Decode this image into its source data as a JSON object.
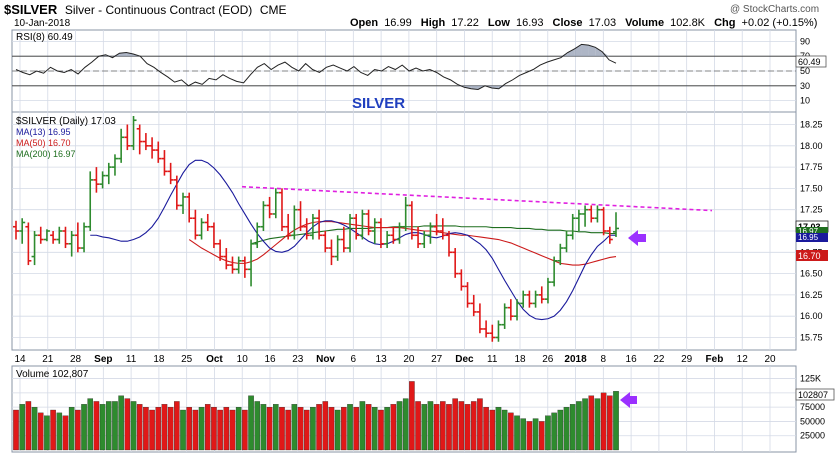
{
  "header": {
    "symbol": "$SILVER",
    "name": "Silver - Continuous Contract (EOD)",
    "exchange": "CME",
    "date": "10-Jan-2018",
    "brand": "@ StockCharts.com",
    "open_label": "Open",
    "open": "16.99",
    "high_label": "High",
    "high": "17.22",
    "low_label": "Low",
    "low": "16.93",
    "close_label": "Close",
    "close": "17.03",
    "volume_label": "Volume",
    "volume": "102.8K",
    "chg_label": "Chg",
    "chg": "+0.02 (+0.15%)"
  },
  "rsi_panel": {
    "legend": "RSI(8) 60.49",
    "value_tag": "60.49",
    "ticks": [
      "90",
      "70",
      "50",
      "30",
      "10"
    ],
    "title": "SILVER"
  },
  "price_panel": {
    "legend_main": "$SILVER (Daily) 17.03",
    "legend_ma13": "MA(13) 16.95",
    "legend_ma50": "MA(50) 16.70",
    "legend_ma200": "MA(200) 16.97",
    "tag_close": "17.03",
    "tag_ma200": "16.97",
    "tag_ma13": "16.95",
    "tag_ma50": "16.70",
    "ticks": [
      "18.25",
      "18.00",
      "17.75",
      "17.50",
      "17.25",
      "17.00",
      "16.75",
      "16.50",
      "16.25",
      "16.00",
      "15.75"
    ]
  },
  "volume_panel": {
    "legend": "Volume 102,807",
    "tag": "102807",
    "ticks": [
      "125K",
      "100000",
      "75000",
      "50000",
      "25000"
    ]
  },
  "x_axis": {
    "labels": [
      "14",
      "21",
      "28",
      "Sep",
      "11",
      "18",
      "25",
      "Oct",
      "10",
      "16",
      "23",
      "Nov",
      "6",
      "13",
      "20",
      "27",
      "Dec",
      "11",
      "18",
      "26",
      "2018",
      "8",
      "16",
      "22",
      "29",
      "Feb",
      "12",
      "20"
    ],
    "bold": [
      "Sep",
      "Oct",
      "Nov",
      "Dec",
      "2018",
      "Feb"
    ]
  },
  "colors": {
    "up": "#2e8b2e",
    "down": "#e01818",
    "ma13": "#1a1a9c",
    "ma50": "#cc1a1a",
    "ma200": "#1f6e1f",
    "trendline": "#e020e0",
    "arrow": "#9b30ff",
    "title": "#1f3fbf",
    "grid": "#d4dae6"
  },
  "chart_data": {
    "type": "candlestick-ohlc",
    "title": "SILVER",
    "price_range": [
      15.65,
      18.35
    ],
    "rsi_range": [
      0,
      100
    ],
    "volume_range": [
      0,
      140000
    ],
    "bars": [
      {
        "o": 17.05,
        "h": 17.12,
        "l": 16.9,
        "c": 17.0,
        "v": 70000
      },
      {
        "o": 17.0,
        "h": 17.15,
        "l": 16.85,
        "c": 17.1,
        "v": 80000
      },
      {
        "o": 17.05,
        "h": 17.1,
        "l": 16.6,
        "c": 16.65,
        "v": 85000
      },
      {
        "o": 16.7,
        "h": 17.0,
        "l": 16.6,
        "c": 16.95,
        "v": 75000
      },
      {
        "o": 16.95,
        "h": 17.05,
        "l": 16.85,
        "c": 16.9,
        "v": 65000
      },
      {
        "o": 16.9,
        "h": 17.02,
        "l": 16.88,
        "c": 17.0,
        "v": 60000
      },
      {
        "o": 16.95,
        "h": 17.0,
        "l": 16.85,
        "c": 16.9,
        "v": 70000
      },
      {
        "o": 16.9,
        "h": 17.05,
        "l": 16.85,
        "c": 17.0,
        "v": 65000
      },
      {
        "o": 17.0,
        "h": 17.05,
        "l": 16.8,
        "c": 16.85,
        "v": 60000
      },
      {
        "o": 16.85,
        "h": 17.0,
        "l": 16.7,
        "c": 16.95,
        "v": 75000
      },
      {
        "o": 16.95,
        "h": 17.1,
        "l": 16.75,
        "c": 16.8,
        "v": 70000
      },
      {
        "o": 16.8,
        "h": 17.1,
        "l": 16.75,
        "c": 17.05,
        "v": 80000
      },
      {
        "o": 17.05,
        "h": 17.7,
        "l": 17.0,
        "c": 17.6,
        "v": 90000
      },
      {
        "o": 17.6,
        "h": 17.75,
        "l": 17.45,
        "c": 17.55,
        "v": 85000
      },
      {
        "o": 17.55,
        "h": 17.7,
        "l": 17.5,
        "c": 17.65,
        "v": 80000
      },
      {
        "o": 17.65,
        "h": 17.8,
        "l": 17.55,
        "c": 17.75,
        "v": 85000
      },
      {
        "o": 17.75,
        "h": 17.9,
        "l": 17.65,
        "c": 17.85,
        "v": 85000
      },
      {
        "o": 17.85,
        "h": 18.2,
        "l": 17.8,
        "c": 18.1,
        "v": 95000
      },
      {
        "o": 18.1,
        "h": 18.25,
        "l": 17.95,
        "c": 18.0,
        "v": 90000
      },
      {
        "o": 18.0,
        "h": 18.35,
        "l": 17.95,
        "c": 18.3,
        "v": 85000
      },
      {
        "o": 18.2,
        "h": 18.25,
        "l": 17.9,
        "c": 18.05,
        "v": 80000
      },
      {
        "o": 18.05,
        "h": 18.15,
        "l": 17.95,
        "c": 18.0,
        "v": 75000
      },
      {
        "o": 18.0,
        "h": 18.1,
        "l": 17.85,
        "c": 17.95,
        "v": 70000
      },
      {
        "o": 17.95,
        "h": 18.05,
        "l": 17.8,
        "c": 17.85,
        "v": 75000
      },
      {
        "o": 17.85,
        "h": 17.95,
        "l": 17.65,
        "c": 17.7,
        "v": 80000
      },
      {
        "o": 17.7,
        "h": 17.8,
        "l": 17.55,
        "c": 17.6,
        "v": 75000
      },
      {
        "o": 17.6,
        "h": 17.65,
        "l": 17.25,
        "c": 17.3,
        "v": 85000
      },
      {
        "o": 17.3,
        "h": 17.45,
        "l": 17.2,
        "c": 17.4,
        "v": 70000
      },
      {
        "o": 17.4,
        "h": 17.45,
        "l": 17.1,
        "c": 17.15,
        "v": 75000
      },
      {
        "o": 17.15,
        "h": 17.25,
        "l": 16.9,
        "c": 16.95,
        "v": 70000
      },
      {
        "o": 16.95,
        "h": 17.15,
        "l": 16.9,
        "c": 17.1,
        "v": 75000
      },
      {
        "o": 17.1,
        "h": 17.2,
        "l": 17.0,
        "c": 17.05,
        "v": 80000
      },
      {
        "o": 17.05,
        "h": 17.1,
        "l": 16.8,
        "c": 16.85,
        "v": 75000
      },
      {
        "o": 16.85,
        "h": 16.9,
        "l": 16.65,
        "c": 16.7,
        "v": 70000
      },
      {
        "o": 16.7,
        "h": 16.8,
        "l": 16.55,
        "c": 16.6,
        "v": 75000
      },
      {
        "o": 16.6,
        "h": 16.7,
        "l": 16.5,
        "c": 16.55,
        "v": 70000
      },
      {
        "o": 16.55,
        "h": 16.7,
        "l": 16.5,
        "c": 16.65,
        "v": 75000
      },
      {
        "o": 16.65,
        "h": 16.7,
        "l": 16.45,
        "c": 16.55,
        "v": 70000
      },
      {
        "o": 16.55,
        "h": 16.9,
        "l": 16.35,
        "c": 16.85,
        "v": 95000
      },
      {
        "o": 16.85,
        "h": 17.1,
        "l": 16.8,
        "c": 17.05,
        "v": 85000
      },
      {
        "o": 17.05,
        "h": 17.35,
        "l": 17.0,
        "c": 17.3,
        "v": 80000
      },
      {
        "o": 17.3,
        "h": 17.4,
        "l": 17.15,
        "c": 17.2,
        "v": 75000
      },
      {
        "o": 17.2,
        "h": 17.5,
        "l": 17.15,
        "c": 17.45,
        "v": 80000
      },
      {
        "o": 17.45,
        "h": 17.5,
        "l": 17.0,
        "c": 17.05,
        "v": 75000
      },
      {
        "o": 17.05,
        "h": 17.2,
        "l": 16.9,
        "c": 16.95,
        "v": 70000
      },
      {
        "o": 16.95,
        "h": 17.3,
        "l": 16.9,
        "c": 17.25,
        "v": 80000
      },
      {
        "o": 17.25,
        "h": 17.35,
        "l": 17.0,
        "c": 17.05,
        "v": 75000
      },
      {
        "o": 17.05,
        "h": 17.15,
        "l": 16.9,
        "c": 16.95,
        "v": 70000
      },
      {
        "o": 16.95,
        "h": 17.2,
        "l": 16.9,
        "c": 17.15,
        "v": 75000
      },
      {
        "o": 17.15,
        "h": 17.25,
        "l": 16.9,
        "c": 16.95,
        "v": 80000
      },
      {
        "o": 16.95,
        "h": 17.0,
        "l": 16.75,
        "c": 16.8,
        "v": 85000
      },
      {
        "o": 16.8,
        "h": 16.9,
        "l": 16.6,
        "c": 16.7,
        "v": 75000
      },
      {
        "o": 16.7,
        "h": 16.95,
        "l": 16.65,
        "c": 16.9,
        "v": 70000
      },
      {
        "o": 16.9,
        "h": 17.05,
        "l": 16.75,
        "c": 16.8,
        "v": 75000
      },
      {
        "o": 16.8,
        "h": 17.2,
        "l": 16.75,
        "c": 17.15,
        "v": 80000
      },
      {
        "o": 17.15,
        "h": 17.2,
        "l": 16.9,
        "c": 16.95,
        "v": 75000
      },
      {
        "o": 16.95,
        "h": 17.25,
        "l": 16.9,
        "c": 17.2,
        "v": 85000
      },
      {
        "o": 17.2,
        "h": 17.25,
        "l": 16.95,
        "c": 17.0,
        "v": 80000
      },
      {
        "o": 17.0,
        "h": 17.15,
        "l": 16.85,
        "c": 17.1,
        "v": 75000
      },
      {
        "o": 17.1,
        "h": 17.15,
        "l": 16.8,
        "c": 16.85,
        "v": 70000
      },
      {
        "o": 16.85,
        "h": 17.0,
        "l": 16.8,
        "c": 16.95,
        "v": 75000
      },
      {
        "o": 16.95,
        "h": 17.05,
        "l": 16.85,
        "c": 16.9,
        "v": 80000
      },
      {
        "o": 16.9,
        "h": 17.1,
        "l": 16.85,
        "c": 17.05,
        "v": 85000
      },
      {
        "o": 17.05,
        "h": 17.4,
        "l": 17.0,
        "c": 17.3,
        "v": 90000
      },
      {
        "o": 17.3,
        "h": 17.35,
        "l": 16.9,
        "c": 16.95,
        "v": 120000
      },
      {
        "o": 16.95,
        "h": 17.05,
        "l": 16.8,
        "c": 16.85,
        "v": 85000
      },
      {
        "o": 16.85,
        "h": 17.0,
        "l": 16.8,
        "c": 16.95,
        "v": 80000
      },
      {
        "o": 16.95,
        "h": 17.1,
        "l": 16.85,
        "c": 17.05,
        "v": 85000
      },
      {
        "o": 17.05,
        "h": 17.2,
        "l": 16.95,
        "c": 17.0,
        "v": 80000
      },
      {
        "o": 17.0,
        "h": 17.15,
        "l": 16.9,
        "c": 16.95,
        "v": 85000
      },
      {
        "o": 16.95,
        "h": 17.0,
        "l": 16.7,
        "c": 16.75,
        "v": 80000
      },
      {
        "o": 16.75,
        "h": 16.8,
        "l": 16.45,
        "c": 16.5,
        "v": 90000
      },
      {
        "o": 16.5,
        "h": 16.55,
        "l": 16.3,
        "c": 16.35,
        "v": 85000
      },
      {
        "o": 16.35,
        "h": 16.4,
        "l": 16.1,
        "c": 16.15,
        "v": 80000
      },
      {
        "o": 16.15,
        "h": 16.25,
        "l": 16.0,
        "c": 16.05,
        "v": 85000
      },
      {
        "o": 16.05,
        "h": 16.15,
        "l": 15.8,
        "c": 15.85,
        "v": 90000
      },
      {
        "o": 15.85,
        "h": 15.95,
        "l": 15.75,
        "c": 15.8,
        "v": 75000
      },
      {
        "o": 15.8,
        "h": 15.9,
        "l": 15.7,
        "c": 15.75,
        "v": 70000
      },
      {
        "o": 15.75,
        "h": 15.95,
        "l": 15.7,
        "c": 15.9,
        "v": 75000
      },
      {
        "o": 15.9,
        "h": 16.15,
        "l": 15.85,
        "c": 16.1,
        "v": 70000
      },
      {
        "o": 16.1,
        "h": 16.2,
        "l": 15.95,
        "c": 16.0,
        "v": 65000
      },
      {
        "o": 16.0,
        "h": 16.2,
        "l": 15.95,
        "c": 16.15,
        "v": 60000
      },
      {
        "o": 16.15,
        "h": 16.3,
        "l": 16.1,
        "c": 16.25,
        "v": 55000
      },
      {
        "o": 16.25,
        "h": 16.3,
        "l": 16.1,
        "c": 16.15,
        "v": 50000
      },
      {
        "o": 16.15,
        "h": 16.3,
        "l": 16.1,
        "c": 16.25,
        "v": 55000
      },
      {
        "o": 16.25,
        "h": 16.35,
        "l": 16.15,
        "c": 16.2,
        "v": 50000
      },
      {
        "o": 16.2,
        "h": 16.45,
        "l": 16.15,
        "c": 16.4,
        "v": 60000
      },
      {
        "o": 16.4,
        "h": 16.7,
        "l": 16.35,
        "c": 16.65,
        "v": 65000
      },
      {
        "o": 16.65,
        "h": 16.85,
        "l": 16.6,
        "c": 16.8,
        "v": 70000
      },
      {
        "o": 16.8,
        "h": 17.0,
        "l": 16.75,
        "c": 16.95,
        "v": 75000
      },
      {
        "o": 16.95,
        "h": 17.2,
        "l": 16.9,
        "c": 17.15,
        "v": 80000
      },
      {
        "o": 17.15,
        "h": 17.25,
        "l": 17.0,
        "c": 17.2,
        "v": 85000
      },
      {
        "o": 17.2,
        "h": 17.3,
        "l": 17.05,
        "c": 17.25,
        "v": 90000
      },
      {
        "o": 17.25,
        "h": 17.3,
        "l": 17.1,
        "c": 17.15,
        "v": 95000
      },
      {
        "o": 17.15,
        "h": 17.3,
        "l": 17.1,
        "c": 17.25,
        "v": 90000
      },
      {
        "o": 17.25,
        "h": 17.28,
        "l": 16.95,
        "c": 17.0,
        "v": 100000
      },
      {
        "o": 17.0,
        "h": 17.05,
        "l": 16.85,
        "c": 16.9,
        "v": 95000
      },
      {
        "o": 16.99,
        "h": 17.22,
        "l": 16.93,
        "c": 17.03,
        "v": 102807
      }
    ],
    "ma13": [
      16.95,
      16.95,
      16.93,
      16.92,
      16.9,
      16.88,
      16.88,
      16.9,
      16.93,
      16.98,
      17.05,
      17.15,
      17.28,
      17.42,
      17.55,
      17.68,
      17.78,
      17.83,
      17.83,
      17.8,
      17.74,
      17.66,
      17.56,
      17.45,
      17.32,
      17.2,
      17.08,
      16.97,
      16.88,
      16.8,
      16.76,
      16.75,
      16.77,
      16.82,
      16.9,
      16.98,
      17.05,
      17.1,
      17.12,
      17.12,
      17.1,
      17.07,
      17.03,
      16.98,
      16.93,
      16.88,
      16.85,
      16.84,
      16.85,
      16.88,
      16.92,
      16.96,
      16.98,
      16.98,
      16.96,
      16.93,
      16.92,
      16.94,
      16.97,
      16.98,
      16.97,
      16.95,
      16.9,
      16.85,
      16.78,
      16.68,
      16.55,
      16.42,
      16.3,
      16.18,
      16.08,
      16.01,
      15.97,
      15.96,
      15.97,
      16.0,
      16.07,
      16.17,
      16.3,
      16.45,
      16.6,
      16.72,
      16.82,
      16.88,
      16.95,
      16.95
    ],
    "ma50": [
      16.9,
      16.85,
      16.8,
      16.76,
      16.72,
      16.68,
      16.65,
      16.63,
      16.62,
      16.62,
      16.64,
      16.67,
      16.72,
      16.78,
      16.84,
      16.9,
      16.96,
      17.01,
      17.05,
      17.08,
      17.1,
      17.11,
      17.11,
      17.11,
      17.1,
      17.09,
      17.08,
      17.07,
      17.06,
      17.05,
      17.04,
      17.04,
      17.04,
      17.04,
      17.04,
      17.03,
      17.02,
      17.01,
      17.0,
      17.0,
      16.99,
      16.98,
      16.97,
      16.96,
      16.95,
      16.95,
      16.94,
      16.93,
      16.92,
      16.91,
      16.9,
      16.88,
      16.86,
      16.83,
      16.8,
      16.77,
      16.74,
      16.71,
      16.68,
      16.65,
      16.62,
      16.61,
      16.6,
      16.6,
      16.61,
      16.63,
      16.65,
      16.67,
      16.69,
      16.7
    ],
    "ma200": [
      16.85,
      16.87,
      16.89,
      16.91,
      16.92,
      16.93,
      16.94,
      16.95,
      16.96,
      16.97,
      16.98,
      16.99,
      17.0,
      17.01,
      17.02,
      17.02,
      17.03,
      17.03,
      17.03,
      17.03,
      17.04,
      17.04,
      17.04,
      17.05,
      17.05,
      17.05,
      17.05,
      17.05,
      17.06,
      17.06,
      17.06,
      17.06,
      17.06,
      17.06,
      17.05,
      17.05,
      17.05,
      17.05,
      17.05,
      17.04,
      17.04,
      17.04,
      17.04,
      17.03,
      17.03,
      17.03,
      17.02,
      17.02,
      17.01,
      17.01,
      17.01,
      17.0,
      17.0,
      16.99,
      16.99,
      16.98,
      16.98,
      16.98,
      16.97,
      16.97
    ],
    "rsi8": [
      52,
      48,
      45,
      50,
      47,
      55,
      50,
      48,
      52,
      46,
      55,
      62,
      70,
      72,
      68,
      74,
      75,
      73,
      70,
      60,
      55,
      48,
      42,
      35,
      38,
      30,
      35,
      32,
      40,
      38,
      45,
      40,
      36,
      34,
      45,
      55,
      60,
      52,
      58,
      62,
      55,
      50,
      60,
      52,
      48,
      55,
      58,
      54,
      50,
      56,
      48,
      44,
      52,
      50,
      56,
      52,
      58,
      50,
      54,
      50,
      52,
      48,
      42,
      38,
      32,
      28,
      26,
      25,
      30,
      27,
      26,
      33,
      38,
      44,
      48,
      52,
      58,
      62,
      65,
      68,
      75,
      80,
      86,
      85,
      82,
      76,
      65,
      60.49
    ],
    "trendline": {
      "start": 17.52,
      "end": 17.24
    }
  }
}
